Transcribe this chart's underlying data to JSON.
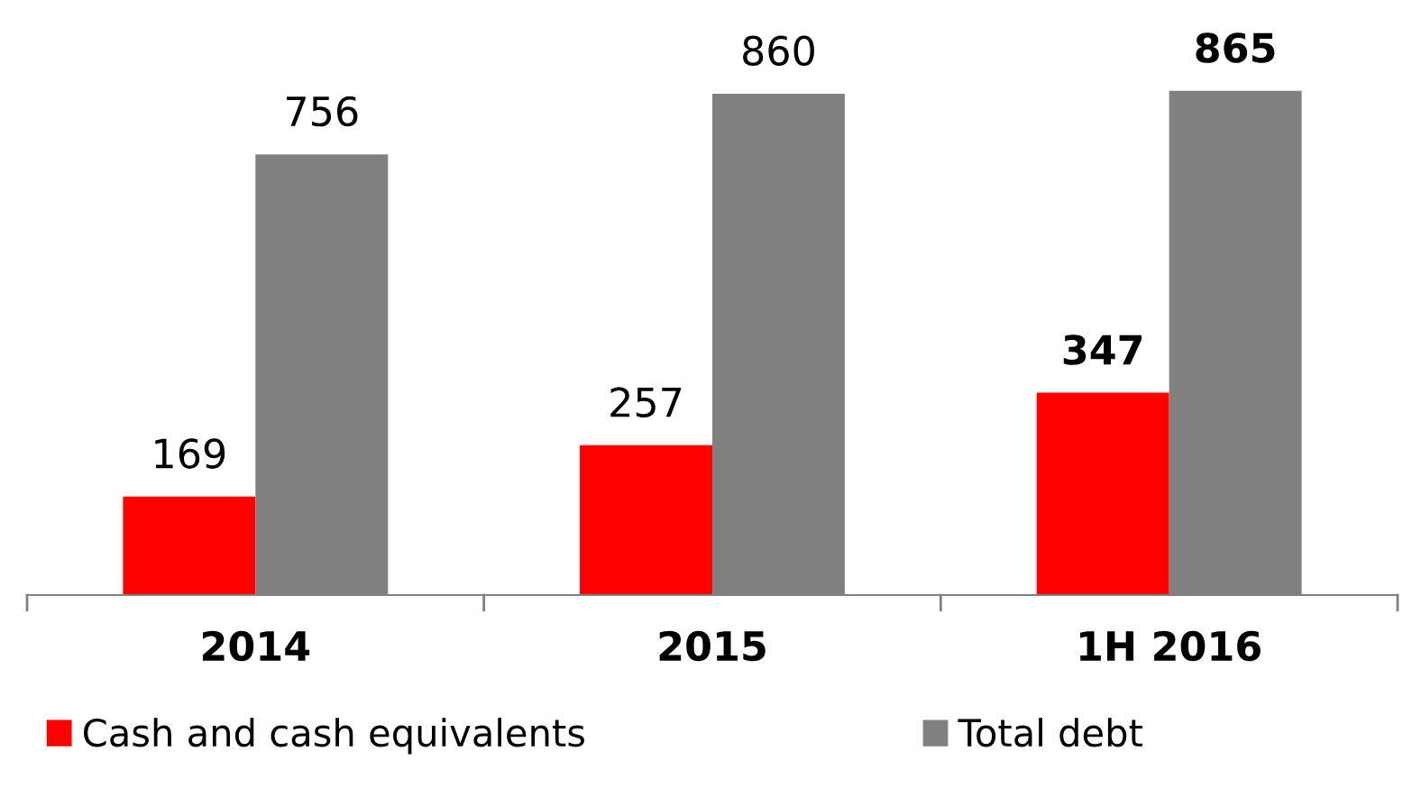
{
  "chart_data": {
    "type": "bar",
    "categories": [
      "2014",
      "2015",
      "1H 2016"
    ],
    "series": [
      {
        "name": "Cash and cash equivalents",
        "color": "#ff0000",
        "values": [
          169,
          257,
          347
        ]
      },
      {
        "name": "Total debt",
        "color": "#808080",
        "values": [
          756,
          860,
          865
        ]
      }
    ],
    "data_labels": true,
    "legend": "bottom",
    "grid": false
  }
}
